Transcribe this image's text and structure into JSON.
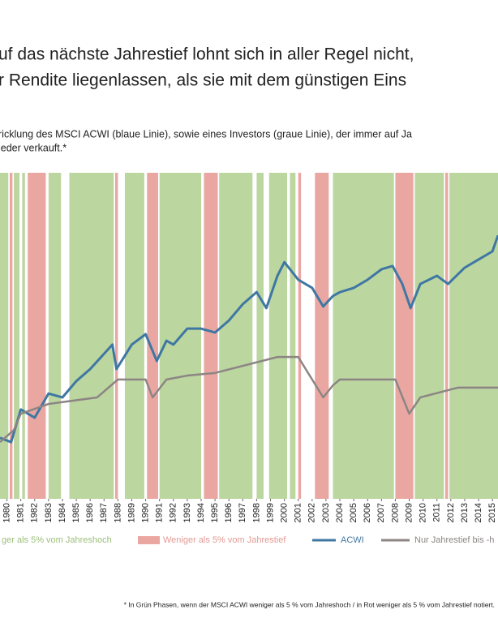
{
  "chart_data": {
    "type": "line",
    "title": [
      "uf das nächste Jahrestief lohnt sich in aller Regel nicht,",
      "r Rendite liegenlassen, als sie mit dem günstigen Eins"
    ],
    "subtitle": [
      "ricklung des MSCI ACWI (blaue Linie), sowie eines Investors (graue Linie), der immer auf Ja",
      "ieder verkauft.*"
    ],
    "note": "* In Grün Phasen, wenn der MSCI ACWI weniger als 5 % vom Jahreshoch / in Rot weniger als 5 % vom Jahrestief notiert.",
    "xlim": [
      1979.5,
      2015.4
    ],
    "ylim": [
      0,
      100
    ],
    "xticks": [
      1980,
      1981,
      1982,
      1983,
      1984,
      1985,
      1986,
      1987,
      1988,
      1989,
      1990,
      1991,
      1992,
      1993,
      1994,
      1995,
      1996,
      1997,
      1998,
      1999,
      2000,
      2001,
      2002,
      2003,
      2004,
      2005,
      2006,
      2007,
      2008,
      2009,
      2010,
      2011,
      2012,
      2013,
      2014,
      2015
    ],
    "bands": [
      {
        "name": "ger als 5% vom Jahreshoch",
        "color": "#bcd6a0",
        "intervals": [
          [
            1979.5,
            1980.1
          ],
          [
            1980.5,
            1980.9
          ],
          [
            1981.1,
            1981.3
          ],
          [
            1983.0,
            1983.9
          ],
          [
            1984.5,
            1987.7
          ],
          [
            1988.5,
            1989.9
          ],
          [
            1991.0,
            1994.0
          ],
          [
            1995.3,
            1997.7
          ],
          [
            1998.0,
            1998.5
          ],
          [
            1998.9,
            2000.2
          ],
          [
            2000.4,
            2000.8
          ],
          [
            2003.5,
            2007.9
          ],
          [
            2009.4,
            2011.5
          ],
          [
            2011.9,
            2015.4
          ]
        ]
      },
      {
        "name": "Weniger als 5% vom Jahrestief",
        "color": "#eaa7a2",
        "intervals": [
          [
            1980.2,
            1980.4
          ],
          [
            1981.5,
            1982.8
          ],
          [
            1987.8,
            1988.0
          ],
          [
            1990.1,
            1990.9
          ],
          [
            1994.2,
            1995.2
          ],
          [
            2001.0,
            2001.2
          ],
          [
            2002.2,
            2003.2
          ],
          [
            2008.0,
            2009.3
          ],
          [
            2011.6,
            2011.8
          ]
        ]
      }
    ],
    "series": [
      {
        "name": "ACWI",
        "color": "#3f77a3",
        "x": [
          1979.5,
          1980.3,
          1981,
          1982,
          1983,
          1984,
          1985,
          1986,
          1987.6,
          1987.9,
          1989,
          1990,
          1990.8,
          1991.5,
          1992,
          1993,
          1994,
          1995,
          1996,
          1997,
          1998,
          1998.7,
          1999.5,
          2000,
          2001,
          2002,
          2002.8,
          2003.5,
          2004,
          2005,
          2006,
          2007,
          2007.8,
          2008.5,
          2009.1,
          2009.8,
          2011,
          2011.8,
          2013,
          2014,
          2015,
          2015.4
        ],
        "values": [
          18.7,
          17.4,
          27.4,
          24.9,
          32.3,
          31.1,
          36.1,
          39.8,
          47.3,
          39.8,
          47.3,
          50.5,
          42.3,
          48.5,
          47.3,
          52.2,
          52.2,
          51.0,
          54.7,
          59.7,
          63.4,
          58.5,
          68.4,
          72.6,
          67.2,
          64.7,
          59.0,
          62.2,
          63.4,
          64.7,
          67.2,
          70.4,
          71.4,
          65.9,
          58.5,
          65.9,
          68.4,
          65.9,
          70.9,
          73.4,
          75.9,
          80.8
        ]
      },
      {
        "name": "Nur Jahrestief bis -h",
        "color": "#8c8584",
        "x": [
          1979.5,
          1980.5,
          1981,
          1983,
          1986.5,
          1988,
          1990,
          1990.5,
          1991.5,
          1993,
          1995,
          1999.5,
          2001,
          2002.8,
          2003.5,
          2004,
          2008,
          2009,
          2009.8,
          2012.5,
          2015.4
        ],
        "values": [
          17.4,
          21.1,
          26.1,
          29.1,
          31.1,
          36.6,
          36.6,
          31.1,
          36.6,
          37.8,
          38.6,
          43.5,
          43.5,
          31.1,
          34.8,
          36.6,
          36.6,
          26.1,
          31.1,
          34.1,
          34.1
        ]
      }
    ]
  }
}
